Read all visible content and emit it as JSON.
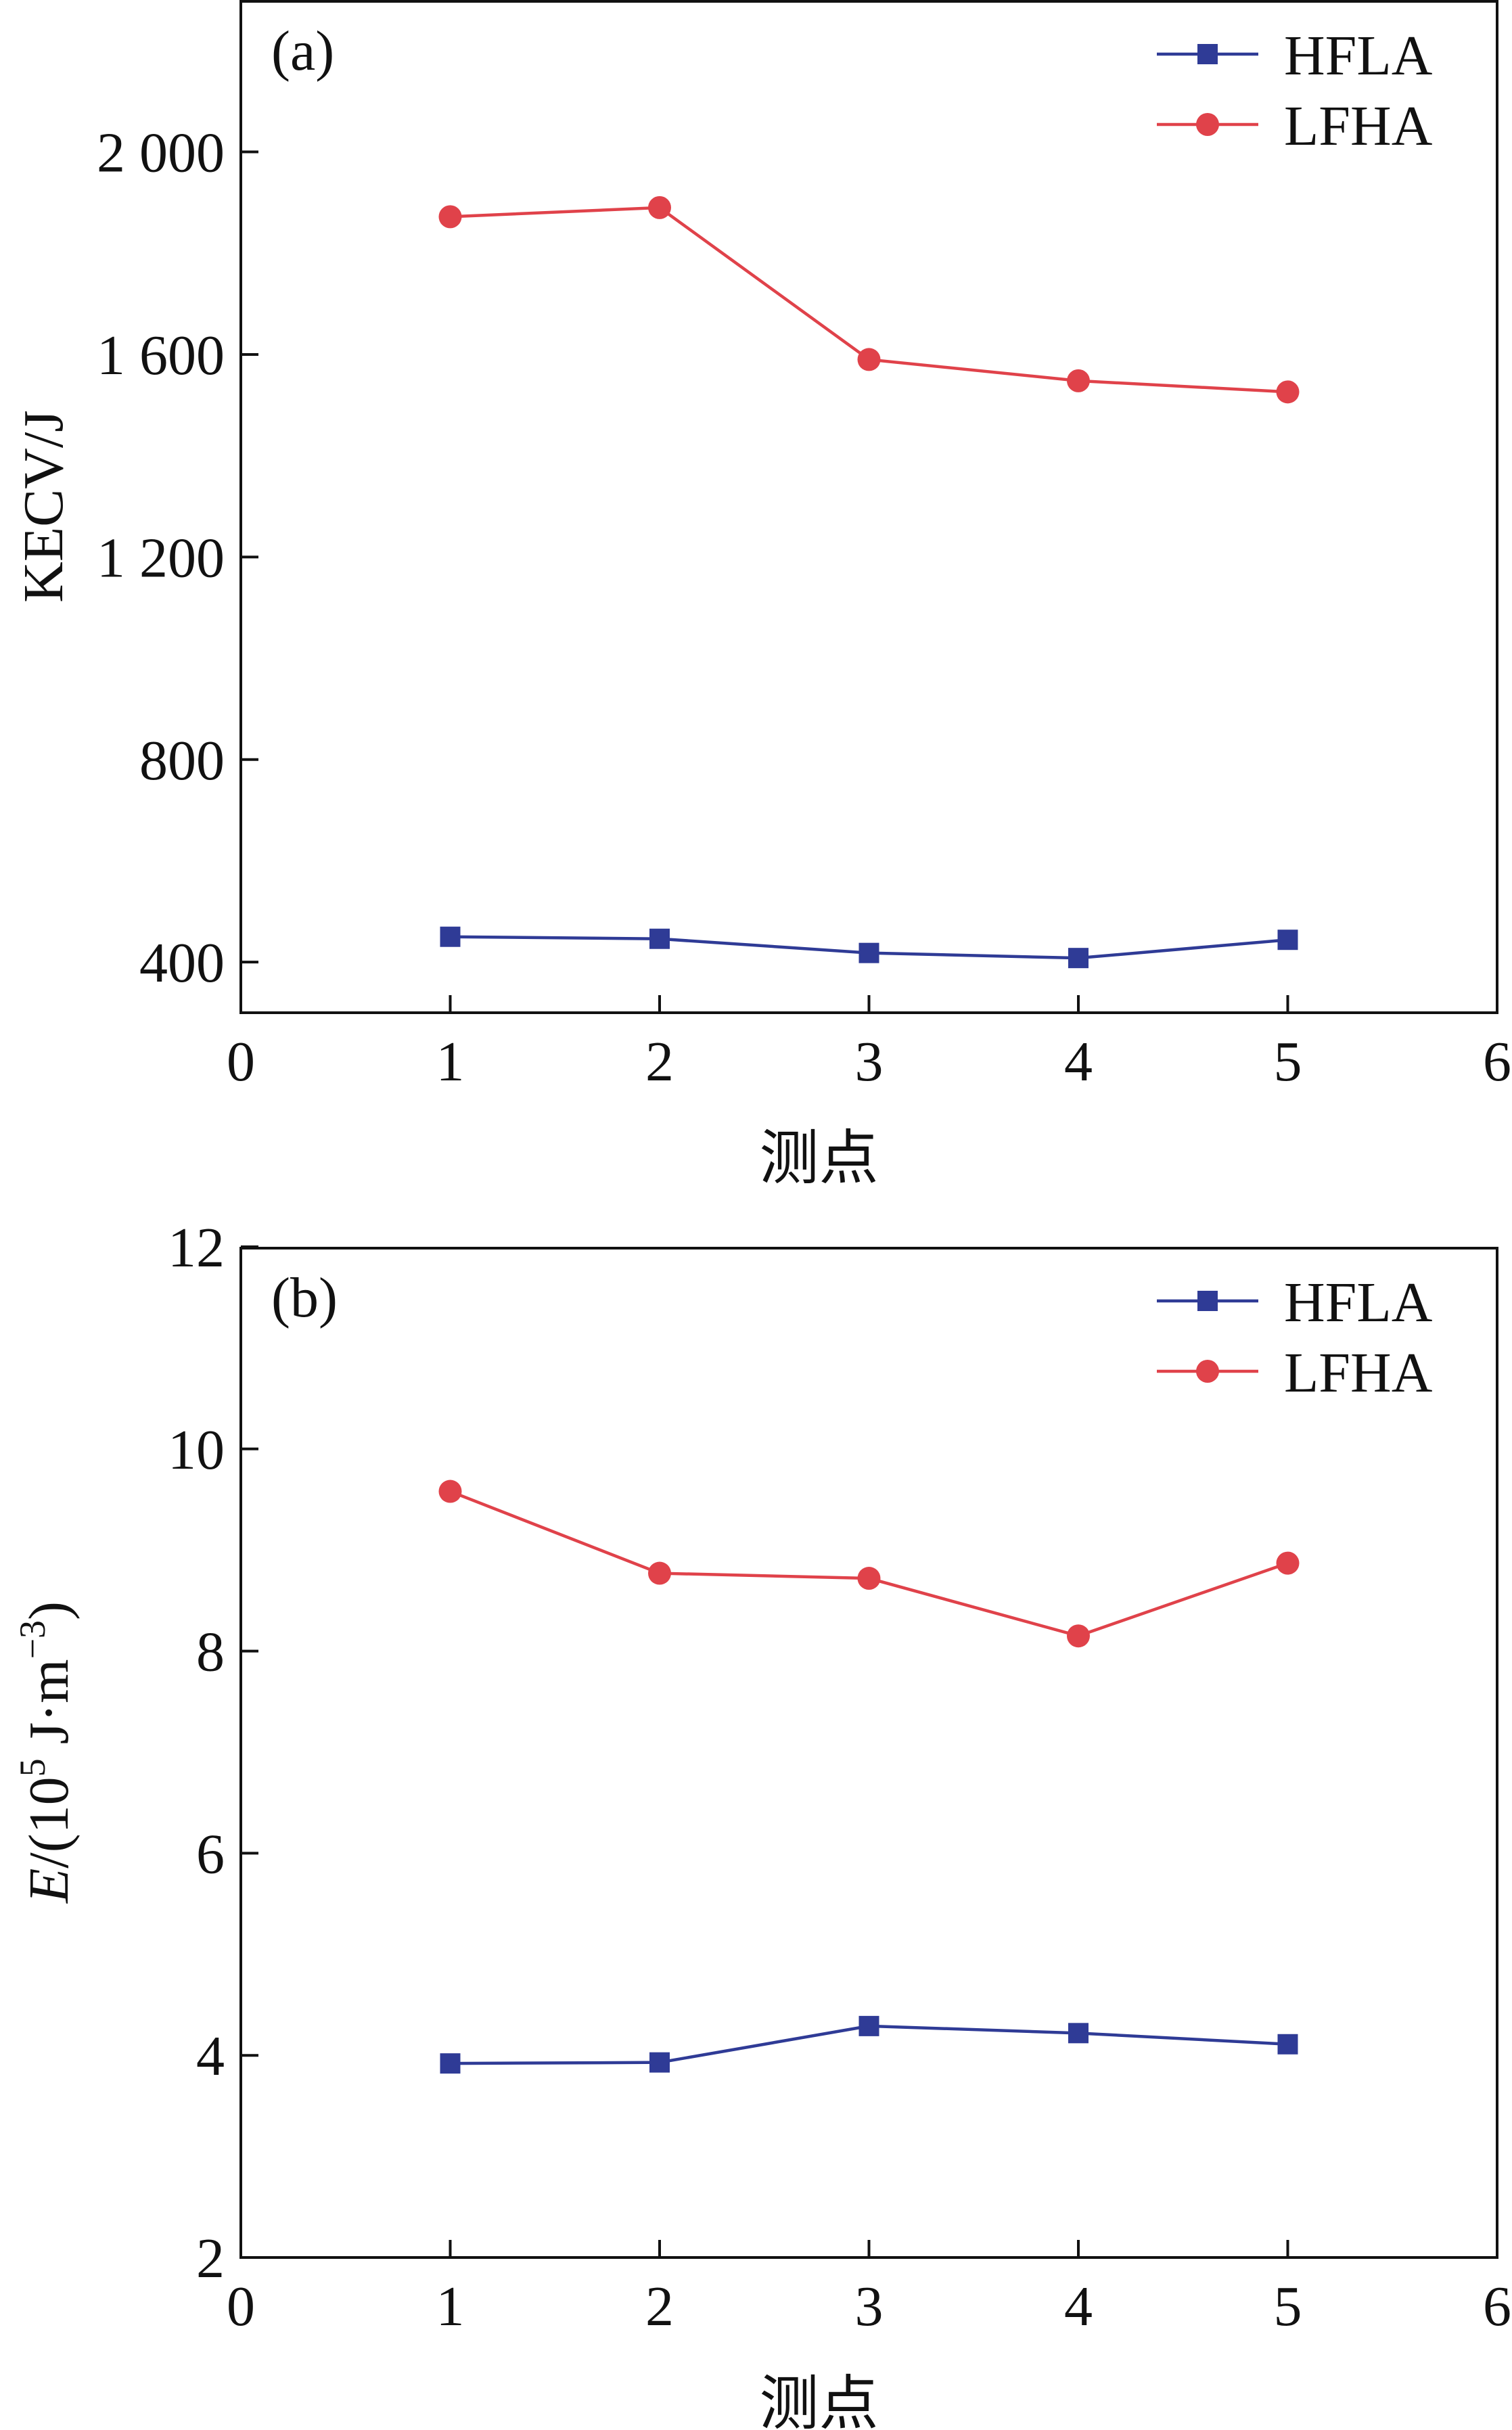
{
  "colors": {
    "hfla": "#2f3b96",
    "lfha": "#e0424a",
    "axis": "#111111"
  },
  "chart_data": [
    {
      "type": "line",
      "panel_label": "(a)",
      "title": "",
      "xlabel": "测点",
      "ylabel": "KECV/J",
      "xlim": [
        0,
        6
      ],
      "ylim": [
        300,
        2300
      ],
      "x_ticks": [
        0,
        1,
        2,
        3,
        4,
        5,
        6
      ],
      "x_tick_labels": [
        "0",
        "1",
        "2",
        "3",
        "4",
        "5",
        "6"
      ],
      "y_ticks": [
        400,
        800,
        1200,
        1600,
        2000
      ],
      "y_tick_labels": [
        "400",
        "800",
        "1 200",
        "1 600",
        "2 000"
      ],
      "grid": false,
      "legend_position": "top-right",
      "x": [
        1,
        2,
        3,
        4,
        5
      ],
      "series": [
        {
          "name": "HFLA",
          "marker": "square",
          "values": [
            450,
            446,
            418,
            408,
            444
          ]
        },
        {
          "name": "LFHA",
          "marker": "circle",
          "values": [
            1872,
            1890,
            1590,
            1548,
            1526
          ]
        }
      ]
    },
    {
      "type": "line",
      "panel_label": "(b)",
      "title": "",
      "xlabel": "测点",
      "ylabel_main": "E",
      "ylabel_rest": "/(10",
      "ylabel_sup1": "5",
      "ylabel_mid": " J·m",
      "ylabel_sup2": "−3",
      "ylabel_end": ")",
      "xlim": [
        0,
        6
      ],
      "ylim": [
        2,
        12
      ],
      "x_ticks": [
        0,
        1,
        2,
        3,
        4,
        5,
        6
      ],
      "x_tick_labels": [
        "0",
        "1",
        "2",
        "3",
        "4",
        "5",
        "6"
      ],
      "y_ticks": [
        2,
        4,
        6,
        8,
        10,
        12
      ],
      "y_tick_labels": [
        "2",
        "4",
        "6",
        "8",
        "10",
        "12"
      ],
      "grid": false,
      "legend_position": "top-right",
      "x": [
        1,
        2,
        3,
        4,
        5
      ],
      "series": [
        {
          "name": "HFLA",
          "marker": "square",
          "values": [
            3.92,
            3.93,
            4.29,
            4.22,
            4.11
          ]
        },
        {
          "name": "LFHA",
          "marker": "circle",
          "values": [
            9.58,
            8.77,
            8.72,
            8.15,
            8.87
          ]
        }
      ]
    }
  ]
}
